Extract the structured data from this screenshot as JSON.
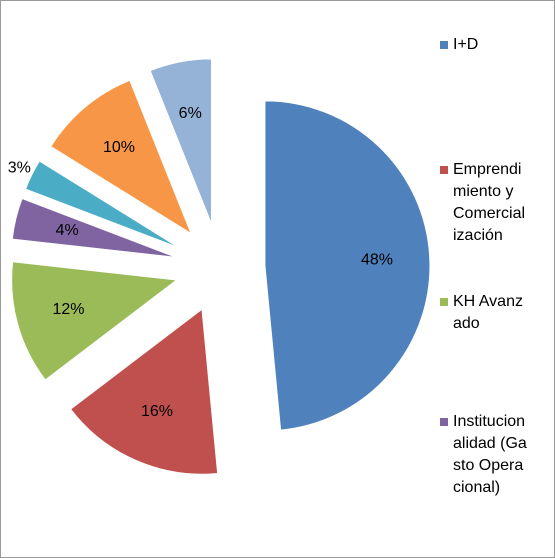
{
  "chart_data": {
    "type": "pie",
    "categories": [
      "I+D",
      "Emprendimiento y Comercialización",
      "KH Avanzado",
      "Institucionalidad (Gasto Operacional)",
      null,
      null,
      null
    ],
    "values": [
      48,
      16,
      12,
      4,
      3,
      10,
      6
    ],
    "value_labels": [
      "48%",
      "16%",
      "12%",
      "4%",
      "3%",
      "10%",
      "6%"
    ],
    "colors": [
      "#4f81bd",
      "#c0504d",
      "#9bbb59",
      "#8064a2",
      "#4bacc6",
      "#f79646",
      "#95b3d7"
    ],
    "legend": "right"
  }
}
